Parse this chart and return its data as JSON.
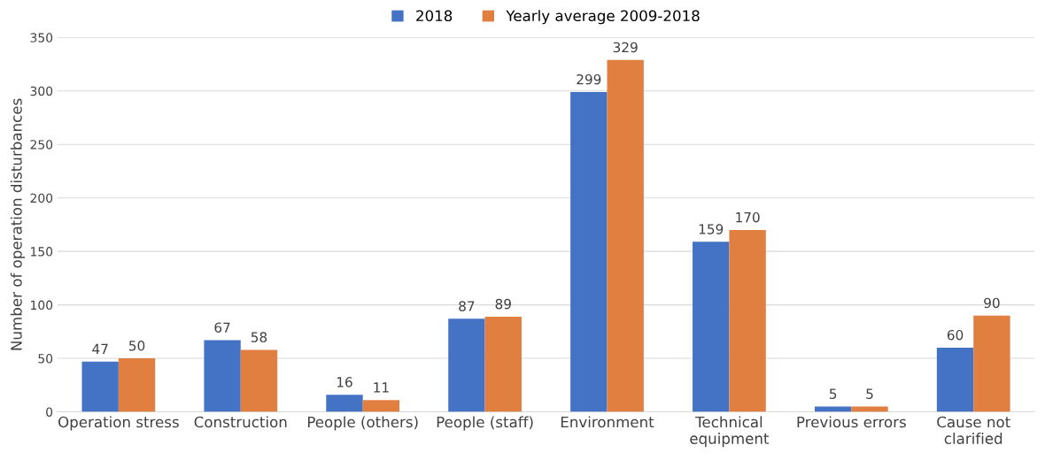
{
  "chart_data": {
    "type": "bar",
    "ylabel": "Number of operation disturbances",
    "categories": [
      "Operation stress",
      "Construction",
      "People (others)",
      "People (staff)",
      "Environment",
      "Technical\nequipment",
      "Previous errors",
      "Cause not\nclarified"
    ],
    "series": [
      {
        "name": "2018",
        "color": "#4472c4",
        "values": [
          47,
          67,
          16,
          87,
          299,
          159,
          5,
          60
        ]
      },
      {
        "name": "Yearly average 2009-2018",
        "color": "#e07f3f",
        "values": [
          50,
          58,
          11,
          89,
          329,
          170,
          5,
          90
        ]
      }
    ],
    "ylim": [
      0,
      350
    ],
    "yticks": [
      0,
      50,
      100,
      150,
      200,
      250,
      300,
      350
    ],
    "grid": "y",
    "legend": "top",
    "data_labels": true
  }
}
